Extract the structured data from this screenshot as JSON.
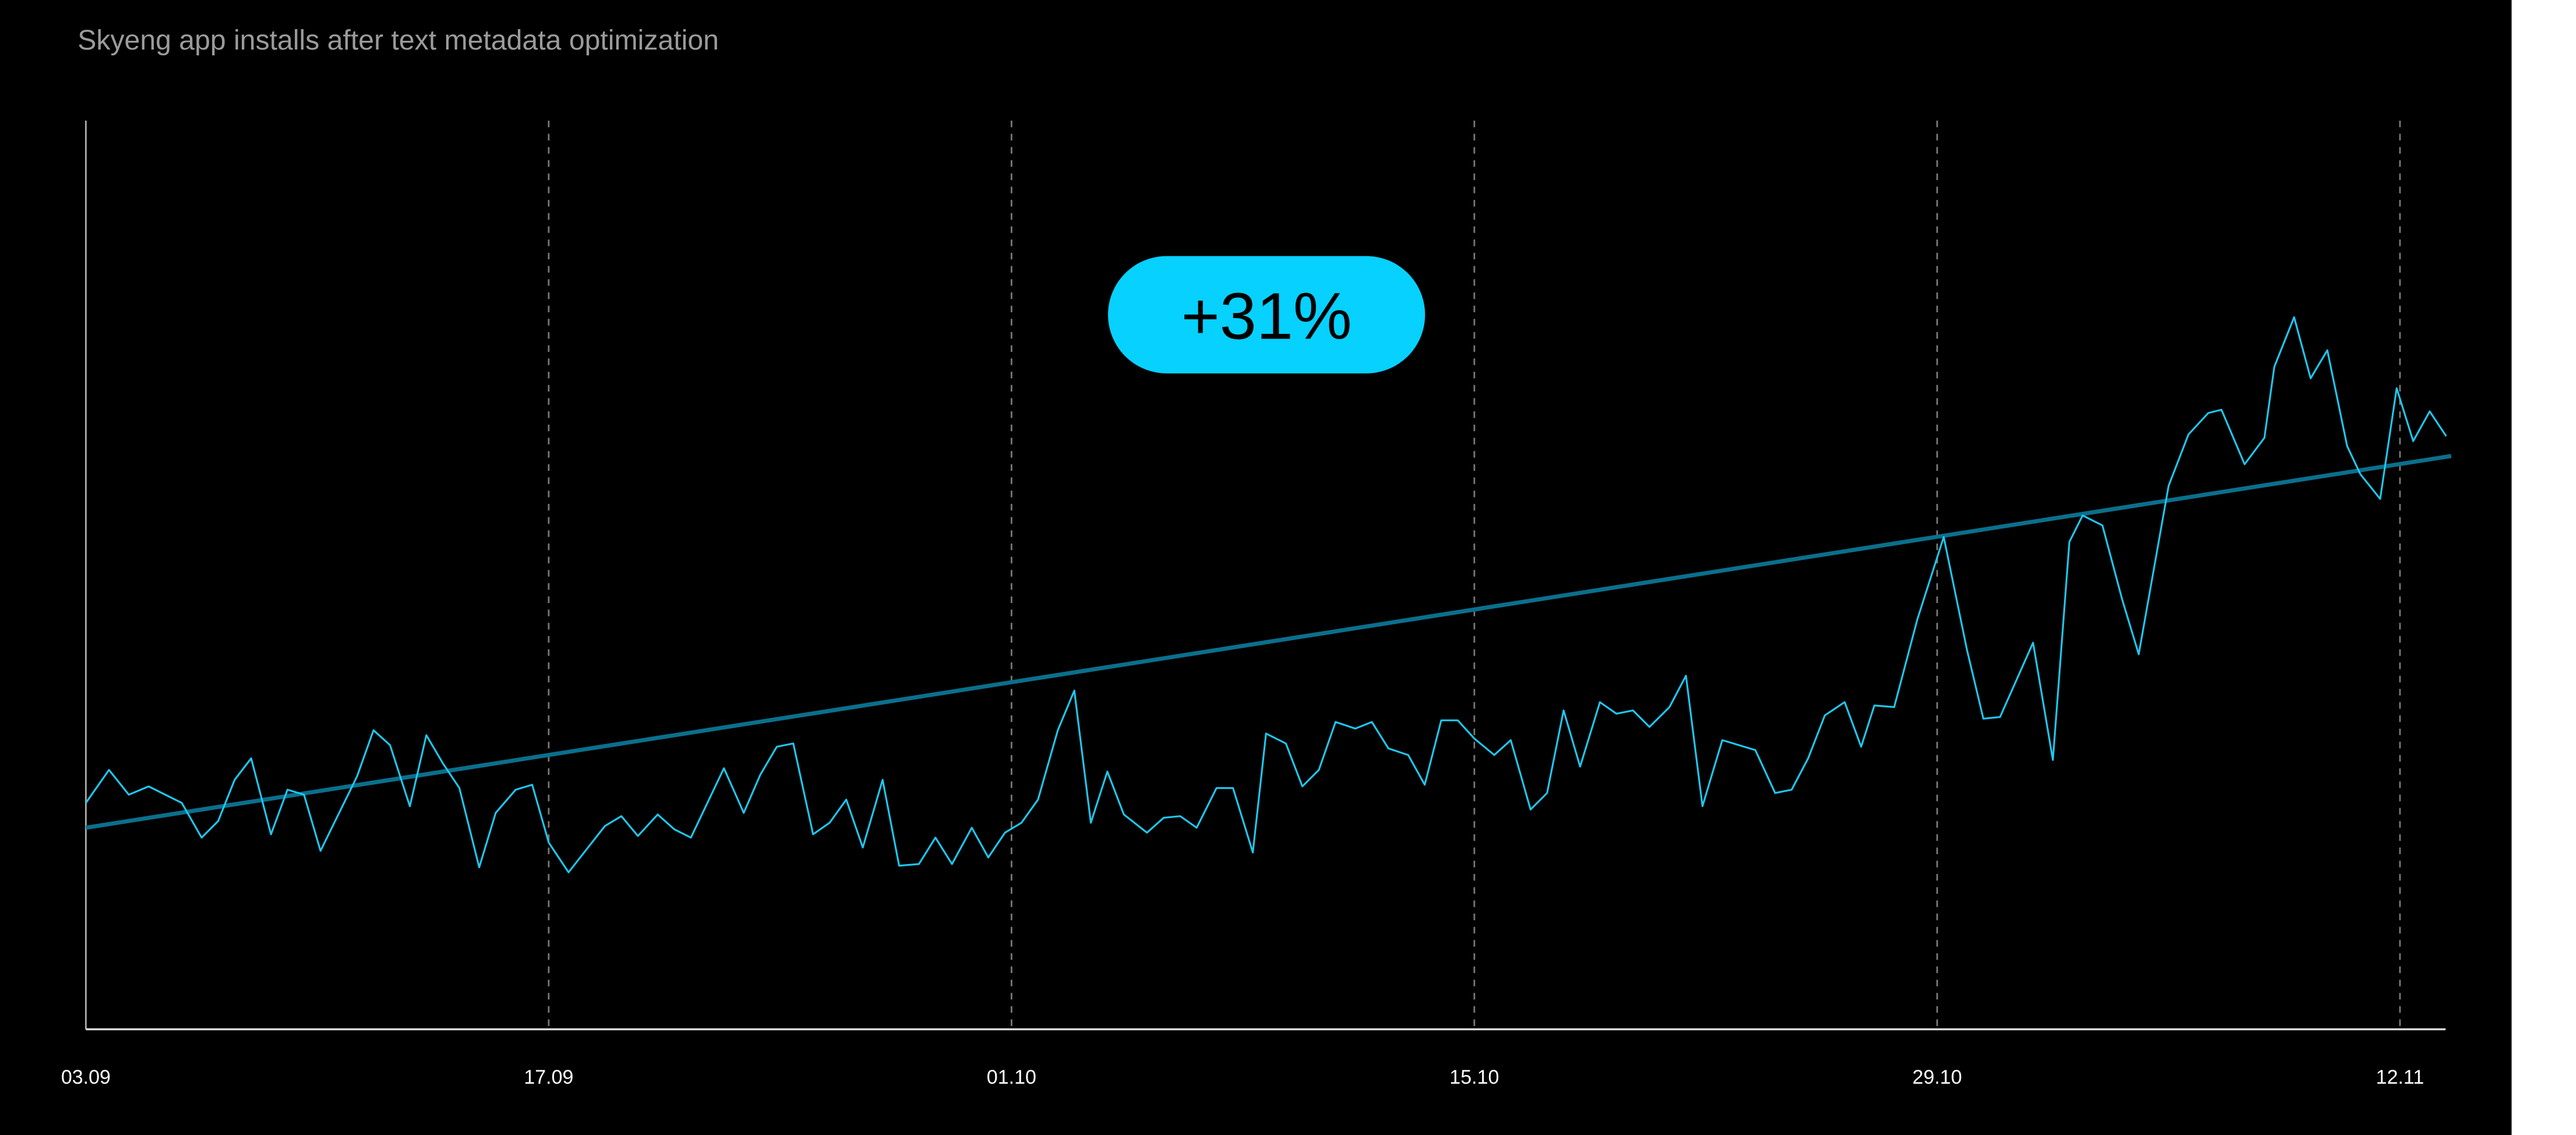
{
  "chart_data": {
    "type": "line",
    "title": "Skyeng app installs after text metadata optimization",
    "xlabel": "",
    "ylabel": "",
    "x_unit": "days since 03.09",
    "xlim": [
      0,
      71.4
    ],
    "ylim": [
      0,
      550
    ],
    "grid": "vertical dashed lines at x ticks",
    "x_ticks": [
      {
        "day": 0,
        "label": "03.09"
      },
      {
        "day": 14,
        "label": "17.09"
      },
      {
        "day": 28,
        "label": "01.10"
      },
      {
        "day": 42,
        "label": "15.10"
      },
      {
        "day": 56,
        "label": "29.10"
      },
      {
        "day": 70,
        "label": "12.11"
      }
    ],
    "annotation": "+31%",
    "colors": {
      "series": "#1ec8f0",
      "trend": "#0b6f8c",
      "badge": "#06d1ff",
      "axis": "#cfcfcf",
      "grid": "#777777"
    },
    "series": [
      {
        "name": "installs",
        "x": [
          0,
          0.7,
          1.3,
          1.9,
          2.9,
          3.5,
          4,
          4.5,
          5,
          5.6,
          6.1,
          6.6,
          7.1,
          8.2,
          8.7,
          9.2,
          9.8,
          10.3,
          10.8,
          11.3,
          11.9,
          12.4,
          13,
          13.5,
          14,
          14.6,
          15.7,
          16.2,
          16.7,
          17.3,
          17.8,
          18.3,
          19.3,
          19.9,
          20.4,
          20.9,
          21.4,
          22,
          22.5,
          23,
          23.5,
          24.1,
          24.6,
          25.2,
          25.7,
          26.2,
          26.8,
          27.3,
          27.8,
          28.3,
          28.8,
          29.4,
          29.9,
          30.4,
          30.9,
          31.4,
          32.1,
          32.6,
          33.1,
          33.6,
          34.2,
          34.7,
          35.3,
          35.7,
          36.3,
          36.8,
          37.3,
          37.8,
          38.4,
          38.9,
          39.4,
          40,
          40.5,
          41,
          41.5,
          42,
          42.6,
          43.1,
          43.7,
          44.2,
          44.7,
          45.2,
          45.8,
          46.3,
          46.8,
          47.3,
          47.9,
          48.4,
          48.9,
          49.5,
          50.5,
          51.1,
          51.6,
          52.1,
          52.6,
          53.2,
          53.7,
          54.1,
          54.7,
          55.4,
          56.2,
          56.9,
          57.4,
          57.9,
          58.9,
          59.5,
          60,
          60.4,
          61,
          61.6,
          62.1,
          63,
          63.6,
          64.2,
          64.6,
          65.3,
          65.9,
          66.2,
          66.8,
          67.3,
          67.8,
          68.4,
          68.8,
          69.4,
          69.9,
          70.4,
          70.9,
          71.4
        ],
        "values": [
          137,
          157,
          142,
          147,
          137,
          116,
          126,
          151,
          164,
          118,
          145,
          142,
          108,
          153,
          181,
          172,
          135,
          178,
          161,
          146,
          98,
          131,
          145,
          148,
          113,
          95,
          123,
          129,
          117,
          130,
          121,
          116,
          158,
          131,
          154,
          171,
          173,
          118,
          125,
          139,
          110,
          151,
          99,
          100,
          116,
          100,
          122,
          104,
          119,
          125,
          139,
          181,
          205,
          125,
          156,
          130,
          119,
          128,
          129,
          122,
          146,
          146,
          107,
          179,
          173,
          147,
          157,
          186,
          182,
          186,
          170,
          166,
          148,
          187,
          187,
          176,
          166,
          175,
          133,
          143,
          193,
          159,
          198,
          191,
          193,
          183,
          195,
          214,
          135,
          175,
          169,
          143,
          145,
          164,
          190,
          198,
          171,
          196,
          195,
          248,
          298,
          230,
          188,
          189,
          234,
          163,
          295,
          311,
          305,
          260,
          227,
          329,
          360,
          373,
          375,
          342,
          358,
          401,
          431,
          394,
          411,
          353,
          336,
          321,
          388,
          356,
          374,
          359
        ]
      },
      {
        "name": "trend",
        "x": [
          0,
          71.55
        ],
        "values": [
          122,
          347
        ]
      }
    ]
  }
}
